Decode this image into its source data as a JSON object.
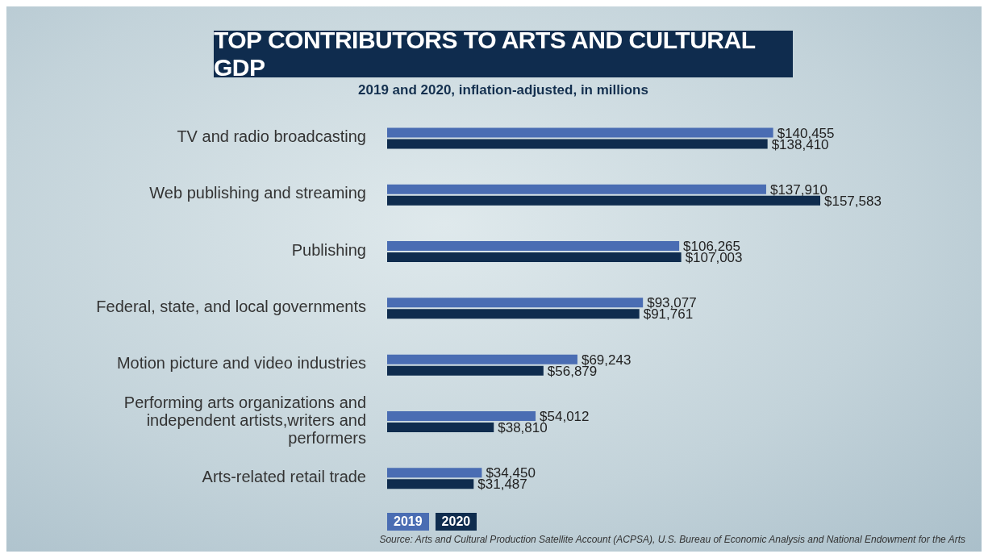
{
  "chart_data": {
    "type": "bar",
    "orientation": "horizontal",
    "title": "TOP CONTRIBUTORS TO ARTS AND CULTURAL GDP",
    "subtitle": "2019 and 2020, inflation-adjusted, in millions",
    "categories": [
      "TV and radio broadcasting",
      "Web publishing and streaming",
      "Publishing",
      "Federal, state, and local governments",
      "Motion picture and video industries",
      "Performing arts organizations and independent artists,writers and performers",
      "Arts-related retail trade"
    ],
    "series": [
      {
        "name": "2019",
        "color": "#4a6db3",
        "values": [
          140455,
          137910,
          106265,
          93077,
          69243,
          54012,
          34450
        ],
        "value_labels": [
          "$140,455",
          "$137,910",
          "$106,265",
          "$93,077",
          "$69,243",
          "$54,012",
          "$34,450"
        ]
      },
      {
        "name": "2020",
        "color": "#0f2c4e",
        "values": [
          138410,
          157583,
          107003,
          91761,
          56879,
          38810,
          31487
        ],
        "value_labels": [
          "$138,410",
          "$157,583",
          "$107,003",
          "$91,761",
          "$56,879",
          "$38,810",
          "$31,487"
        ]
      }
    ],
    "legend": "bottom left",
    "annotations": [
      "Source: Arts and Cultural Production Satellite Account (ACPSA), U.S. Bureau of Economic Analysis and National Endowment for the Arts"
    ]
  }
}
